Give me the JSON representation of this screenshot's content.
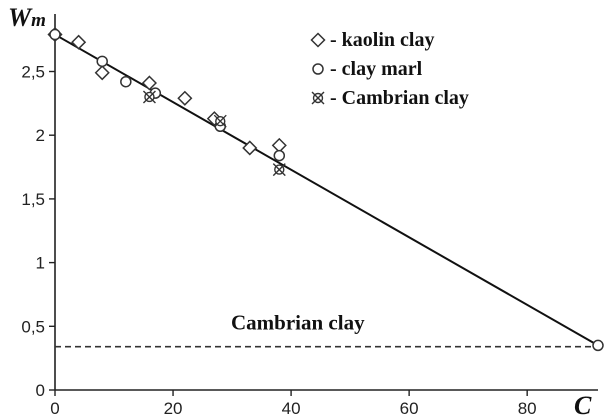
{
  "chart_data": {
    "type": "scatter",
    "x_axis": {
      "label": "C",
      "ticks": [
        0,
        20,
        40,
        60,
        80
      ],
      "range": [
        0,
        92
      ]
    },
    "y_axis": {
      "label": "W",
      "label_subscript": "m",
      "ticks": [
        0,
        0.5,
        1,
        1.5,
        2,
        2.5
      ],
      "tick_labels": [
        "0",
        "0,5",
        "1",
        "1,5",
        "2",
        "2,5"
      ],
      "range": [
        0,
        2.92
      ]
    },
    "series": [
      {
        "name": "kaolin clay",
        "marker": "diamond",
        "points": [
          [
            0,
            2.79
          ],
          [
            4,
            2.73
          ],
          [
            8,
            2.49
          ],
          [
            16,
            2.41
          ],
          [
            22,
            2.29
          ],
          [
            27,
            2.13
          ],
          [
            33,
            1.9
          ],
          [
            38,
            1.92
          ]
        ]
      },
      {
        "name": "clay marl",
        "marker": "circle",
        "points": [
          [
            0,
            2.79
          ],
          [
            8,
            2.58
          ],
          [
            12,
            2.42
          ],
          [
            17,
            2.33
          ],
          [
            28,
            2.07
          ],
          [
            38,
            1.84
          ],
          [
            92,
            0.35
          ]
        ]
      },
      {
        "name": "Cambrian clay",
        "marker": "cross-circle",
        "points": [
          [
            16,
            2.3
          ],
          [
            28,
            2.11
          ],
          [
            38,
            1.73
          ]
        ]
      }
    ],
    "fit_line": {
      "from": [
        0,
        2.79
      ],
      "to": [
        92,
        0.35
      ]
    },
    "reference_line": {
      "y": 0.34,
      "style": "dashed",
      "label": "Cambrian clay"
    },
    "legend": {
      "position": "top-right",
      "entries": [
        "- kaolin clay",
        "- clay marl",
        "- Cambrian clay"
      ]
    },
    "grid": false
  }
}
